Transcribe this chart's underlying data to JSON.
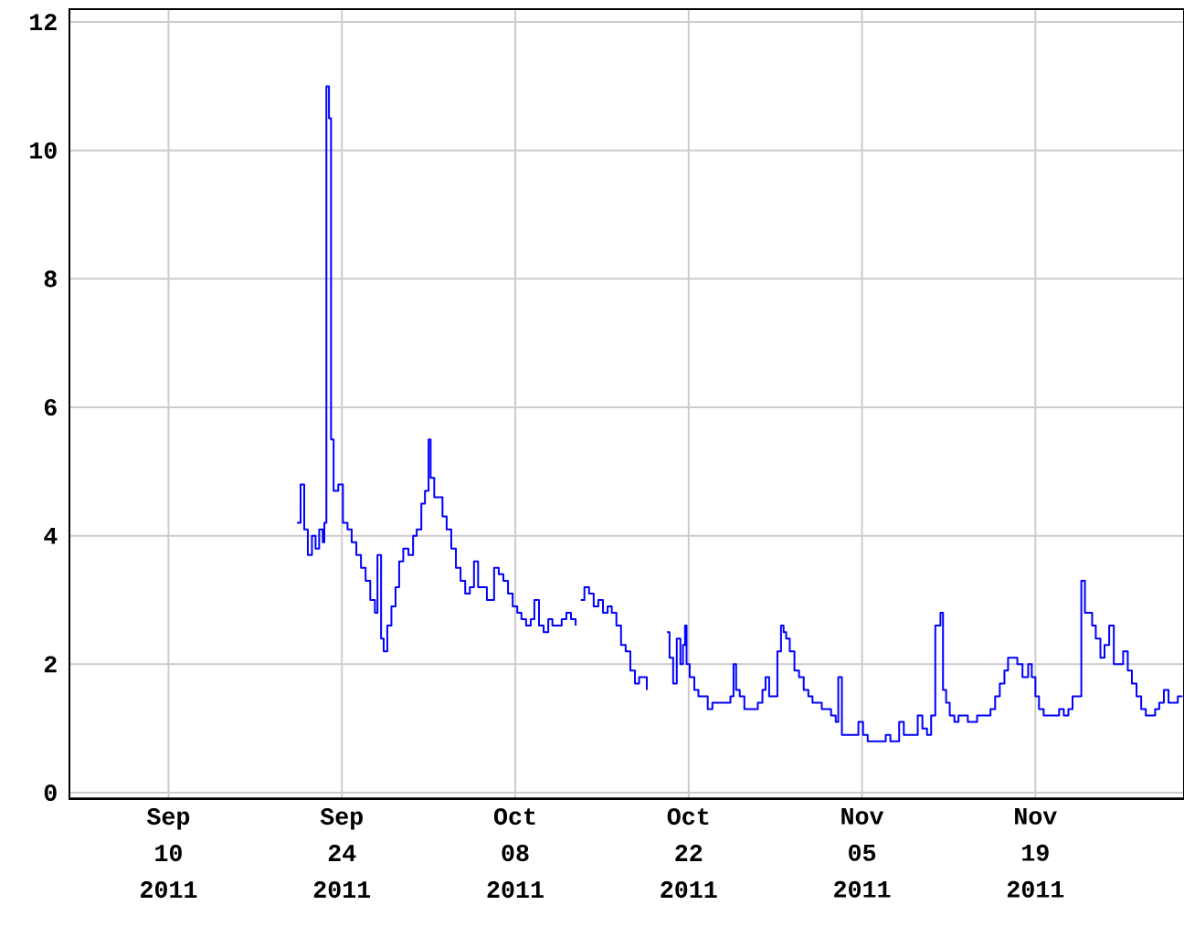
{
  "chart_data": {
    "type": "step",
    "line_style": "solid",
    "grid": true,
    "xlim": [
      "2011-09-02",
      "2011-12-01"
    ],
    "ylim": [
      -0.1,
      12.2
    ],
    "xticks": [
      {
        "value": "2011-09-10",
        "label": "Sep 10 2011"
      },
      {
        "value": "2011-09-24",
        "label": "Sep 24 2011"
      },
      {
        "value": "2011-10-08",
        "label": "Oct 08 2011"
      },
      {
        "value": "2011-10-22",
        "label": "Oct 22 2011"
      },
      {
        "value": "2011-11-05",
        "label": "Nov 05 2011"
      },
      {
        "value": "2011-11-19",
        "label": "Nov 19 2011"
      }
    ],
    "yticks": [
      0,
      2,
      4,
      6,
      8,
      10,
      12
    ],
    "series": [
      {
        "color": "#0000ff",
        "x": [
          "2011-09-20T09:00",
          "2011-09-20T16:00",
          "2011-09-20T23:00",
          "2011-09-21T06:00",
          "2011-09-21T14:00",
          "2011-09-21T21:00",
          "2011-09-22T04:00",
          "2011-09-22T11:00",
          "2011-09-22T14:00",
          "2011-09-22T18:00",
          "2011-09-22T23:00",
          "2011-09-23T03:00",
          "2011-09-23T08:00",
          "2011-09-23T17:00",
          "2011-09-24T02:00",
          "2011-09-24T11:00",
          "2011-09-24T19:00",
          "2011-09-25T04:00",
          "2011-09-25T13:00",
          "2011-09-25T22:00",
          "2011-09-26T07:00",
          "2011-09-26T16:00",
          "2011-09-26T21:00",
          "2011-09-27T04:00",
          "2011-09-27T09:00",
          "2011-09-27T16:00",
          "2011-09-28T00:00",
          "2011-09-28T08:00",
          "2011-09-28T15:00",
          "2011-09-28T23:00",
          "2011-09-29T09:00",
          "2011-09-29T18:00",
          "2011-09-30T01:00",
          "2011-09-30T10:00",
          "2011-09-30T17:00",
          "2011-10-01T00:00",
          "2011-10-01T04:00",
          "2011-10-01T11:00",
          "2011-10-01T19:00",
          "2011-10-02T03:00",
          "2011-10-02T11:00",
          "2011-10-02T20:00",
          "2011-10-03T05:00",
          "2011-10-03T14:00",
          "2011-10-03T23:00",
          "2011-10-04T08:00",
          "2011-10-04T16:00",
          "2011-10-05T00:00",
          "2011-10-05T10:00",
          "2011-10-05T17:00",
          "2011-10-06T07:00",
          "2011-10-06T16:00",
          "2011-10-07T01:00",
          "2011-10-07T10:00",
          "2011-10-07T19:00",
          "2011-10-08T04:00",
          "2011-10-08T12:00",
          "2011-10-08T21:00",
          "2011-10-09T06:00",
          "2011-10-09T13:00",
          "2011-10-09T22:00",
          "2011-10-10T07:00",
          "2011-10-10T16:00",
          "2011-10-11T00:00",
          "2011-10-11T09:00",
          "2011-10-11T18:00",
          "2011-10-12T03:00",
          "2011-10-12T12:00",
          "2011-10-12T21:00",
          "2011-10-13T02:00",
          "2011-10-13T07:00",
          "2011-10-13T14:00",
          "2011-10-13T23:00",
          "2011-10-14T08:00",
          "2011-10-14T17:00",
          "2011-10-15T02:00",
          "2011-10-15T11:00",
          "2011-10-15T19:00",
          "2011-10-16T04:00",
          "2011-10-16T13:00",
          "2011-10-16T22:00",
          "2011-10-17T07:00",
          "2011-10-17T16:00",
          "2011-10-18T00:00",
          "2011-10-18T09:00",
          "2011-10-18T15:00",
          "2011-10-19T12:00",
          "2011-10-20T06:00",
          "2011-10-20T11:00",
          "2011-10-20T18:00",
          "2011-10-21T01:00",
          "2011-10-21T08:00",
          "2011-10-21T13:00",
          "2011-10-21T17:00",
          "2011-10-21T20:00",
          "2011-10-22T02:00",
          "2011-10-22T11:00",
          "2011-10-22T19:00",
          "2011-10-23T04:00",
          "2011-10-23T13:00",
          "2011-10-23T22:00",
          "2011-10-24T16:00",
          "2011-10-25T09:00",
          "2011-10-25T15:00",
          "2011-10-25T20:00",
          "2011-10-26T03:00",
          "2011-10-26T12:00",
          "2011-10-27T06:00",
          "2011-10-27T14:00",
          "2011-10-27T23:00",
          "2011-10-28T05:00",
          "2011-10-28T12:00",
          "2011-10-28T22:00",
          "2011-10-29T04:00",
          "2011-10-29T11:00",
          "2011-10-29T16:00",
          "2011-10-29T21:00",
          "2011-10-30T04:00",
          "2011-10-30T13:00",
          "2011-10-30T22:00",
          "2011-10-31T07:00",
          "2011-10-31T16:00",
          "2011-11-01T00:00",
          "2011-11-01T09:00",
          "2011-11-01T18:00",
          "2011-11-02T03:00",
          "2011-11-02T12:00",
          "2011-11-02T21:00",
          "2011-11-03T02:00",
          "2011-11-03T09:00",
          "2011-11-04T08:00",
          "2011-11-04T17:00",
          "2011-11-05T02:00",
          "2011-11-05T11:00",
          "2011-11-06T04:00",
          "2011-11-06T22:00",
          "2011-11-07T07:00",
          "2011-11-08T00:00",
          "2011-11-08T09:00",
          "2011-11-09T00:00",
          "2011-11-09T12:00",
          "2011-11-09T21:00",
          "2011-11-10T06:00",
          "2011-11-10T14:00",
          "2011-11-10T22:00",
          "2011-11-11T08:00",
          "2011-11-11T13:00",
          "2011-11-11T19:00",
          "2011-11-12T02:00",
          "2011-11-12T11:00",
          "2011-11-12T19:00",
          "2011-11-13T13:00",
          "2011-11-14T07:00",
          "2011-11-15T00:00",
          "2011-11-15T09:00",
          "2011-11-15T18:00",
          "2011-11-16T03:00",
          "2011-11-16T12:00",
          "2011-11-16T19:00",
          "2011-11-17T06:00",
          "2011-11-17T13:00",
          "2011-11-17T23:00",
          "2011-11-18T10:00",
          "2011-11-18T17:00",
          "2011-11-19T00:00",
          "2011-11-19T07:00",
          "2011-11-19T16:00",
          "2011-11-20T13:00",
          "2011-11-20T22:00",
          "2011-11-21T07:00",
          "2011-11-21T16:00",
          "2011-11-22T00:00",
          "2011-11-22T11:00",
          "2011-11-22T17:00",
          "2011-11-23T00:00",
          "2011-11-23T07:00",
          "2011-11-23T14:00",
          "2011-11-23T21:00",
          "2011-11-24T06:00",
          "2011-11-24T14:00",
          "2011-11-24T23:00",
          "2011-11-25T08:00",
          "2011-11-25T17:00",
          "2011-11-26T02:00",
          "2011-11-26T11:00",
          "2011-11-26T19:00",
          "2011-11-27T04:00",
          "2011-11-27T13:00",
          "2011-11-27T22:00",
          "2011-11-28T07:00",
          "2011-11-28T16:00",
          "2011-11-29T00:00",
          "2011-11-29T09:00",
          "2011-11-29T18:00",
          "2011-11-30T03:00",
          "2011-11-30T12:00",
          "2011-11-30T21:00"
        ],
        "values": [
          4.2,
          4.8,
          4.1,
          3.7,
          4.0,
          3.8,
          4.1,
          3.9,
          4.2,
          11.0,
          10.5,
          5.5,
          4.7,
          4.8,
          4.2,
          4.1,
          3.9,
          3.7,
          3.5,
          3.3,
          3.0,
          2.8,
          3.7,
          2.4,
          2.2,
          2.6,
          2.9,
          3.2,
          3.6,
          3.8,
          3.7,
          4.0,
          4.1,
          4.5,
          4.7,
          5.5,
          4.9,
          4.6,
          4.6,
          4.3,
          4.1,
          3.8,
          3.5,
          3.3,
          3.1,
          3.2,
          3.6,
          3.2,
          3.2,
          3.0,
          3.5,
          3.4,
          3.3,
          3.1,
          2.9,
          2.8,
          2.7,
          2.6,
          2.7,
          3.0,
          2.6,
          2.5,
          2.7,
          2.6,
          2.6,
          2.7,
          2.8,
          2.7,
          2.6,
          null,
          3.0,
          3.2,
          3.1,
          2.9,
          3.0,
          2.8,
          2.9,
          2.8,
          2.6,
          2.3,
          2.2,
          1.9,
          1.7,
          1.8,
          1.8,
          1.6,
          null,
          2.5,
          2.1,
          1.7,
          2.4,
          2.0,
          2.3,
          2.6,
          2.0,
          1.8,
          1.6,
          1.5,
          1.5,
          1.3,
          1.4,
          1.4,
          1.5,
          2.0,
          1.6,
          1.5,
          1.3,
          1.3,
          1.4,
          1.6,
          1.8,
          1.5,
          1.5,
          2.2,
          2.6,
          2.5,
          2.4,
          2.2,
          1.9,
          1.8,
          1.6,
          1.5,
          1.4,
          1.4,
          1.3,
          1.3,
          1.2,
          1.1,
          1.8,
          0.9,
          0.9,
          1.1,
          0.9,
          0.8,
          0.8,
          0.9,
          0.8,
          1.1,
          0.9,
          0.9,
          1.2,
          1.0,
          0.9,
          1.2,
          2.6,
          2.8,
          1.6,
          1.4,
          1.2,
          1.1,
          1.2,
          1.1,
          1.2,
          1.2,
          1.3,
          1.5,
          1.7,
          1.9,
          2.1,
          2.1,
          2.0,
          1.8,
          2.0,
          1.8,
          1.5,
          1.3,
          1.2,
          1.2,
          1.3,
          1.2,
          1.3,
          1.5,
          1.5,
          3.3,
          2.8,
          2.8,
          2.6,
          2.4,
          2.1,
          2.3,
          2.6,
          2.0,
          2.0,
          2.2,
          1.9,
          1.7,
          1.5,
          1.3,
          1.2,
          1.2,
          1.3,
          1.4,
          1.6,
          1.4,
          1.4,
          1.5,
          1.5
        ]
      }
    ]
  }
}
